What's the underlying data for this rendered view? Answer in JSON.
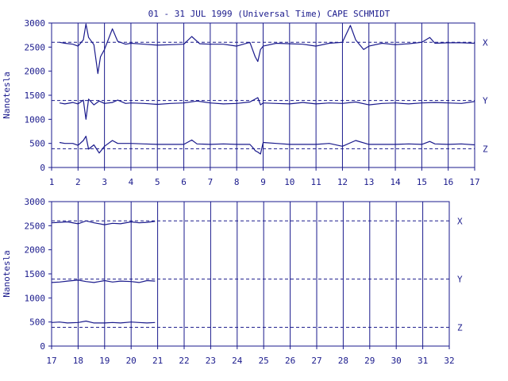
{
  "chart_data": [
    {
      "type": "line",
      "title": "01 - 31 JUL 1999 (Universal Time) CAPE SCHMIDT",
      "ylabel": "Nanotesla",
      "xlim": [
        1,
        17
      ],
      "ylim": [
        0,
        3000
      ],
      "x_ticks": [
        1,
        2,
        3,
        4,
        5,
        6,
        7,
        8,
        9,
        10,
        11,
        12,
        13,
        14,
        15,
        16,
        17
      ],
      "y_ticks": [
        0,
        500,
        1000,
        1500,
        2000,
        2500,
        3000
      ],
      "grid": "vertical day lines",
      "baselines": [
        {
          "name": "X",
          "value": 2600
        },
        {
          "name": "Y",
          "value": 1390
        },
        {
          "name": "Z",
          "value": 390
        }
      ],
      "series": [
        {
          "name": "X",
          "x": [
            1.3,
            1.5,
            1.8,
            2.0,
            2.2,
            2.3,
            2.4,
            2.6,
            2.75,
            2.85,
            3.0,
            3.3,
            3.5,
            3.8,
            4.0,
            4.5,
            5.0,
            5.5,
            6.0,
            6.3,
            6.6,
            7.0,
            7.5,
            8.0,
            8.5,
            8.7,
            8.8,
            8.9,
            9.0,
            9.5,
            10.0,
            10.5,
            11.0,
            11.5,
            12.0,
            12.3,
            12.5,
            12.8,
            13.0,
            13.5,
            14.0,
            14.5,
            15.0,
            15.3,
            15.5,
            16.0,
            16.5,
            17.0
          ],
          "values": [
            2600,
            2580,
            2560,
            2520,
            2650,
            2980,
            2700,
            2550,
            1950,
            2300,
            2450,
            2880,
            2620,
            2560,
            2580,
            2560,
            2540,
            2550,
            2560,
            2720,
            2570,
            2560,
            2560,
            2520,
            2600,
            2300,
            2200,
            2450,
            2520,
            2580,
            2570,
            2560,
            2520,
            2580,
            2600,
            2950,
            2650,
            2450,
            2520,
            2580,
            2550,
            2570,
            2600,
            2700,
            2580,
            2590,
            2590,
            2580
          ]
        },
        {
          "name": "Y",
          "x": [
            1.3,
            1.5,
            1.8,
            2.0,
            2.2,
            2.3,
            2.4,
            2.6,
            2.8,
            3.0,
            3.3,
            3.5,
            3.8,
            4.0,
            4.5,
            5.0,
            5.5,
            6.0,
            6.5,
            7.0,
            7.5,
            8.0,
            8.5,
            8.8,
            8.9,
            9.0,
            9.5,
            10.0,
            10.5,
            11.0,
            11.5,
            12.0,
            12.5,
            13.0,
            13.5,
            14.0,
            14.5,
            15.0,
            15.5,
            16.0,
            16.5,
            17.0
          ],
          "values": [
            1340,
            1320,
            1350,
            1320,
            1400,
            1000,
            1420,
            1300,
            1380,
            1330,
            1350,
            1400,
            1330,
            1340,
            1330,
            1310,
            1330,
            1340,
            1380,
            1340,
            1320,
            1330,
            1360,
            1450,
            1300,
            1340,
            1330,
            1320,
            1350,
            1320,
            1340,
            1330,
            1360,
            1300,
            1330,
            1340,
            1320,
            1340,
            1350,
            1340,
            1330,
            1370
          ]
        },
        {
          "name": "Z",
          "x": [
            1.3,
            1.5,
            1.8,
            2.0,
            2.2,
            2.3,
            2.4,
            2.6,
            2.8,
            3.0,
            3.3,
            3.5,
            4.0,
            4.5,
            5.0,
            5.5,
            6.0,
            6.3,
            6.5,
            7.0,
            7.5,
            8.0,
            8.5,
            8.6,
            8.7,
            8.8,
            8.9,
            9.0,
            9.5,
            10.0,
            10.5,
            11.0,
            11.5,
            12.0,
            12.5,
            13.0,
            13.5,
            14.0,
            14.5,
            15.0,
            15.3,
            15.5,
            16.0,
            16.5,
            17.0
          ],
          "values": [
            520,
            500,
            500,
            460,
            560,
            650,
            380,
            470,
            300,
            440,
            560,
            500,
            500,
            490,
            480,
            480,
            480,
            570,
            490,
            480,
            490,
            480,
            480,
            420,
            350,
            320,
            280,
            520,
            500,
            480,
            480,
            480,
            500,
            440,
            560,
            480,
            480,
            480,
            490,
            480,
            540,
            490,
            480,
            490,
            470
          ]
        }
      ]
    },
    {
      "type": "line",
      "ylabel": "Nanotesla",
      "xlim": [
        17,
        32
      ],
      "ylim": [
        0,
        3000
      ],
      "x_ticks": [
        17,
        18,
        19,
        20,
        21,
        22,
        23,
        24,
        25,
        26,
        27,
        28,
        29,
        30,
        31,
        32
      ],
      "y_ticks": [
        0,
        500,
        1000,
        1500,
        2000,
        2500,
        3000
      ],
      "grid": "vertical day lines",
      "baselines": [
        {
          "name": "X",
          "value": 2600
        },
        {
          "name": "Y",
          "value": 1390
        },
        {
          "name": "Z",
          "value": 390
        }
      ],
      "series": [
        {
          "name": "X",
          "x": [
            17.0,
            17.3,
            17.6,
            18.0,
            18.3,
            18.6,
            19.0,
            19.3,
            19.6,
            20.0,
            20.3,
            20.6,
            20.9
          ],
          "values": [
            2560,
            2570,
            2580,
            2540,
            2600,
            2560,
            2520,
            2550,
            2540,
            2580,
            2560,
            2570,
            2590
          ]
        },
        {
          "name": "Y",
          "x": [
            17.0,
            17.3,
            17.6,
            18.0,
            18.3,
            18.6,
            19.0,
            19.3,
            19.6,
            20.0,
            20.3,
            20.6,
            20.9
          ],
          "values": [
            1320,
            1330,
            1350,
            1370,
            1340,
            1320,
            1360,
            1330,
            1350,
            1340,
            1320,
            1360,
            1350
          ]
        },
        {
          "name": "Z",
          "x": [
            17.0,
            17.3,
            17.6,
            18.0,
            18.3,
            18.6,
            19.0,
            19.3,
            19.6,
            20.0,
            20.3,
            20.6,
            20.9
          ],
          "values": [
            490,
            500,
            480,
            490,
            520,
            480,
            480,
            490,
            480,
            500,
            490,
            480,
            490
          ]
        }
      ]
    }
  ]
}
